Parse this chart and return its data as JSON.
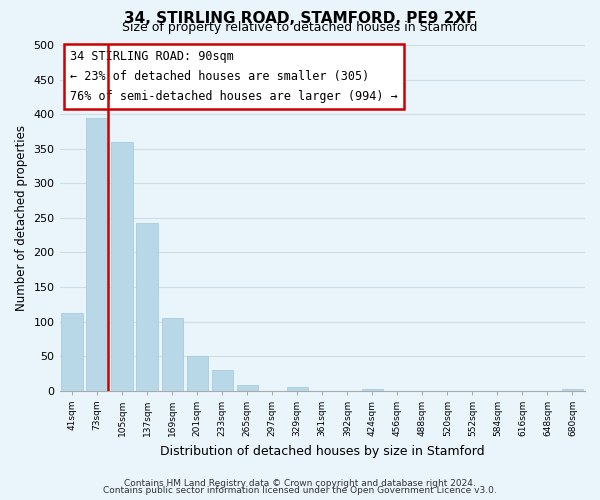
{
  "title": "34, STIRLING ROAD, STAMFORD, PE9 2XF",
  "subtitle": "Size of property relative to detached houses in Stamford",
  "xlabel": "Distribution of detached houses by size in Stamford",
  "ylabel": "Number of detached properties",
  "bar_labels": [
    "41sqm",
    "73sqm",
    "105sqm",
    "137sqm",
    "169sqm",
    "201sqm",
    "233sqm",
    "265sqm",
    "297sqm",
    "329sqm",
    "361sqm",
    "392sqm",
    "424sqm",
    "456sqm",
    "488sqm",
    "520sqm",
    "552sqm",
    "584sqm",
    "616sqm",
    "648sqm",
    "680sqm"
  ],
  "bar_heights": [
    112,
    394,
    360,
    243,
    105,
    50,
    30,
    8,
    0,
    5,
    0,
    0,
    2,
    0,
    0,
    0,
    0,
    0,
    0,
    0,
    2
  ],
  "bar_color": "#b8d8e8",
  "bar_edge_color": "#a0c8d8",
  "grid_color": "#ccdde8",
  "property_line_color": "#cc0000",
  "annotation_box_color": "#ffffff",
  "annotation_box_edge_color": "#cc0000",
  "property_label": "34 STIRLING ROAD: 90sqm",
  "annotation_line1": "← 23% of detached houses are smaller (305)",
  "annotation_line2": "76% of semi-detached houses are larger (994) →",
  "ylim": [
    0,
    500
  ],
  "yticks": [
    0,
    50,
    100,
    150,
    200,
    250,
    300,
    350,
    400,
    450,
    500
  ],
  "footer_line1": "Contains HM Land Registry data © Crown copyright and database right 2024.",
  "footer_line2": "Contains public sector information licensed under the Open Government Licence v3.0.",
  "background_color": "#eaf4fb"
}
